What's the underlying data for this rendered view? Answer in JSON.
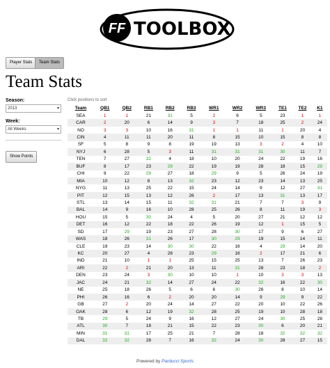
{
  "logo": {
    "badge": "FF",
    "text": "TOOLBOX"
  },
  "nav": [
    "Player Stats",
    "Team Stats"
  ],
  "page_title": "Team Stats",
  "sidebar": {
    "season_label": "Season:",
    "season_value": "2013",
    "week_label": "Week:",
    "week_value": "All Weeks",
    "button": "Show Points"
  },
  "table": {
    "note": "Click positions to sort",
    "headers": [
      "Team",
      "QB1",
      "QB2",
      "RB1",
      "RB2",
      "RB3",
      "WR1",
      "WR2",
      "WR3",
      "TE1",
      "TE2",
      "K1"
    ],
    "rows": [
      [
        "SEA",
        1,
        1,
        21,
        31,
        5,
        2,
        6,
        5,
        23,
        1,
        1
      ],
      [
        "CAR",
        2,
        20,
        6,
        14,
        9,
        3,
        7,
        18,
        25,
        2,
        24
      ],
      [
        "NO",
        3,
        3,
        10,
        16,
        31,
        1,
        1,
        11,
        1,
        20,
        4
      ],
      [
        "CIN",
        4,
        11,
        11,
        20,
        11,
        8,
        15,
        10,
        15,
        8,
        8
      ],
      [
        "SF",
        5,
        8,
        9,
        8,
        19,
        19,
        13,
        3,
        2,
        4,
        10
      ],
      [
        "NYJ",
        6,
        28,
        5,
        3,
        11,
        31,
        31,
        31,
        30,
        11,
        7
      ],
      [
        "TEN",
        7,
        27,
        32,
        4,
        18,
        10,
        20,
        24,
        22,
        19,
        16
      ],
      [
        "BUF",
        8,
        17,
        23,
        29,
        22,
        19,
        19,
        28,
        18,
        15,
        29
      ],
      [
        "CHI",
        9,
        22,
        29,
        27,
        18,
        29,
        9,
        5,
        26,
        24,
        19
      ],
      [
        "MIA",
        10,
        12,
        8,
        13,
        32,
        23,
        12,
        23,
        14,
        13,
        25
      ],
      [
        "NYG",
        11,
        13,
        25,
        22,
        15,
        24,
        14,
        9,
        12,
        27,
        31
      ],
      [
        "PIT",
        12,
        15,
        13,
        12,
        26,
        2,
        17,
        13,
        31,
        13,
        17
      ],
      [
        "STL",
        13,
        14,
        15,
        11,
        32,
        31,
        21,
        7,
        7,
        3,
        9
      ],
      [
        "BAL",
        14,
        9,
        16,
        10,
        28,
        25,
        26,
        8,
        11,
        19,
        3
      ],
      [
        "HOU",
        15,
        5,
        30,
        24,
        4,
        5,
        20,
        27,
        21,
        12,
        12
      ],
      [
        "DET",
        16,
        12,
        22,
        18,
        22,
        26,
        19,
        12,
        1,
        15,
        5
      ],
      [
        "SD",
        17,
        29,
        19,
        23,
        27,
        28,
        30,
        17,
        9,
        6,
        27
      ],
      [
        "WAS",
        18,
        26,
        31,
        26,
        17,
        30,
        29,
        19,
        15,
        14,
        11
      ],
      [
        "CLE",
        19,
        23,
        14,
        30,
        30,
        22,
        16,
        4,
        29,
        14,
        20
      ],
      [
        "KC",
        20,
        27,
        4,
        28,
        23,
        29,
        16,
        2,
        17,
        21,
        6
      ],
      [
        "IND",
        21,
        10,
        1,
        1,
        25,
        15,
        25,
        13,
        7,
        26,
        23
      ],
      [
        "ARI",
        22,
        2,
        21,
        20,
        13,
        11,
        31,
        28,
        23,
        18,
        2
      ],
      [
        "DEN",
        23,
        24,
        3,
        30,
        10,
        10,
        1,
        10,
        3,
        3,
        13
      ],
      [
        "JAC",
        24,
        21,
        32,
        14,
        27,
        24,
        22,
        32,
        16,
        22,
        30
      ],
      [
        "NE",
        25,
        18,
        26,
        5,
        6,
        6,
        30,
        26,
        8,
        10,
        14
      ],
      [
        "PHI",
        26,
        16,
        6,
        2,
        20,
        20,
        14,
        9,
        29,
        9,
        22
      ],
      [
        "GB",
        27,
        2,
        20,
        24,
        14,
        27,
        22,
        20,
        10,
        22,
        26
      ],
      [
        "OAK",
        28,
        6,
        12,
        19,
        32,
        28,
        25,
        19,
        10,
        28,
        18
      ],
      [
        "TB",
        29,
        5,
        24,
        9,
        16,
        12,
        27,
        24,
        30,
        25,
        28
      ],
      [
        "ATL",
        30,
        7,
        18,
        21,
        15,
        22,
        23,
        30,
        6,
        20,
        21
      ],
      [
        "MIN",
        31,
        31,
        17,
        25,
        21,
        7,
        28,
        18,
        32,
        32,
        32
      ],
      [
        "DAL",
        32,
        32,
        28,
        7,
        16,
        32,
        24,
        30,
        28,
        27,
        15
      ]
    ]
  },
  "footer": {
    "prefix": "Powered by",
    "link": "Parducci Sports"
  }
}
